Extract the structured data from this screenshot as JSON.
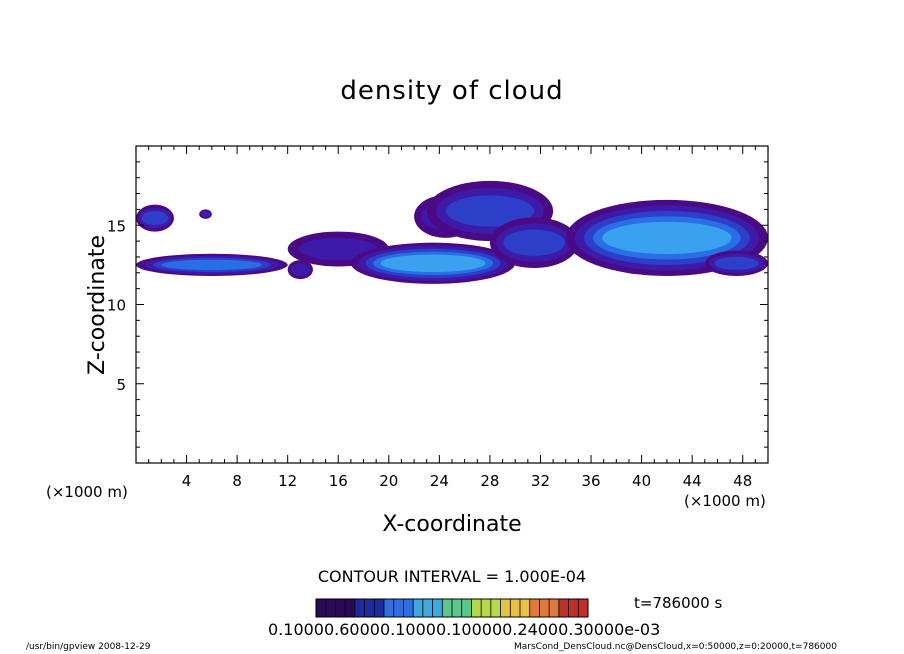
{
  "chart_data": {
    "type": "heatmap",
    "title": "density of cloud",
    "xlabel": "X-coordinate",
    "ylabel": "Z-coordinate",
    "x_unit_left": "(×1000 m)",
    "x_unit_right": "(×1000 m)",
    "xlim": [
      0,
      50
    ],
    "ylim": [
      0,
      20
    ],
    "xticks": [
      4,
      8,
      12,
      16,
      20,
      24,
      28,
      32,
      36,
      40,
      44,
      48
    ],
    "yticks": [
      5,
      10,
      15
    ],
    "contour_interval": "CONTOUR INTERVAL = 1.000E-04",
    "time_label": "t=786000 s",
    "colorbar_labels": "0.10000.60000.10000.100000.24000.30000e-03",
    "colormap": [
      "#2a0a55",
      "#1e2a9e",
      "#2f6fe0",
      "#3fa8e0",
      "#58c98a",
      "#b6d84a",
      "#e6c24a",
      "#e07a3a",
      "#c0302a"
    ],
    "cloud_blobs": [
      {
        "x": [
          0,
          3
        ],
        "z": [
          14.6,
          16.3
        ],
        "level": 2
      },
      {
        "x": [
          0,
          12
        ],
        "z": [
          11.8,
          13.2
        ],
        "level": 3
      },
      {
        "x": [
          5,
          6
        ],
        "z": [
          15.4,
          16.0
        ],
        "level": 1
      },
      {
        "x": [
          12,
          14
        ],
        "z": [
          11.6,
          12.8
        ],
        "level": 1
      },
      {
        "x": [
          12,
          20
        ],
        "z": [
          12.4,
          14.6
        ],
        "level": 1
      },
      {
        "x": [
          17,
          30
        ],
        "z": [
          11.3,
          13.9
        ],
        "level": 4
      },
      {
        "x": [
          22,
          27
        ],
        "z": [
          14.2,
          16.9
        ],
        "level": 1
      },
      {
        "x": [
          23,
          33
        ],
        "z": [
          14.0,
          17.8
        ],
        "level": 2
      },
      {
        "x": [
          28,
          35
        ],
        "z": [
          12.3,
          15.5
        ],
        "level": 2
      },
      {
        "x": [
          34,
          50
        ],
        "z": [
          11.8,
          16.6
        ],
        "level": 4
      },
      {
        "x": [
          45,
          50
        ],
        "z": [
          11.8,
          13.4
        ],
        "level": 2
      }
    ]
  },
  "footer": {
    "left": "/usr/bin/gpview   2008-12-29",
    "right": "MarsCond_DensCloud.nc@DensCloud,x=0:50000,z=0:20000,t=786000"
  }
}
